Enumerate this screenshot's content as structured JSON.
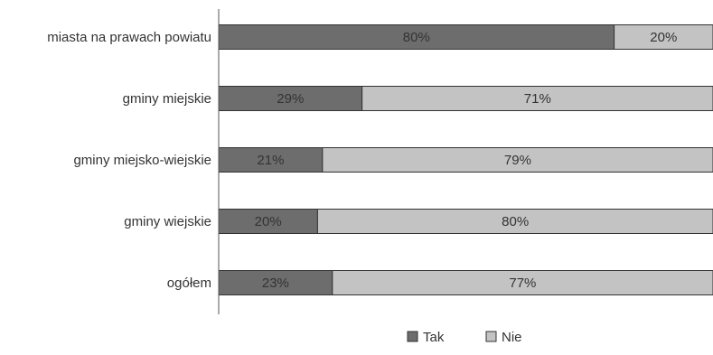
{
  "chart_data": {
    "type": "bar",
    "orientation": "horizontal",
    "stacked": true,
    "percent_stacked": true,
    "categories": [
      "miasta na prawach powiatu",
      "gminy miejskie",
      "gminy miejsko-wiejskie",
      "gminy wiejskie",
      "ogółem"
    ],
    "series": [
      {
        "name": "Tak",
        "color": "#6d6d6d",
        "values": [
          80,
          29,
          21,
          20,
          23
        ],
        "labels": [
          "80%",
          "29%",
          "21%",
          "20%",
          "23%"
        ]
      },
      {
        "name": "Nie",
        "color": "#c3c3c3",
        "values": [
          20,
          71,
          79,
          80,
          77
        ],
        "labels": [
          "20%",
          "71%",
          "79%",
          "80%",
          "77%"
        ]
      }
    ],
    "xlim": [
      0,
      100
    ],
    "grid": false,
    "legend_position": "bottom"
  }
}
